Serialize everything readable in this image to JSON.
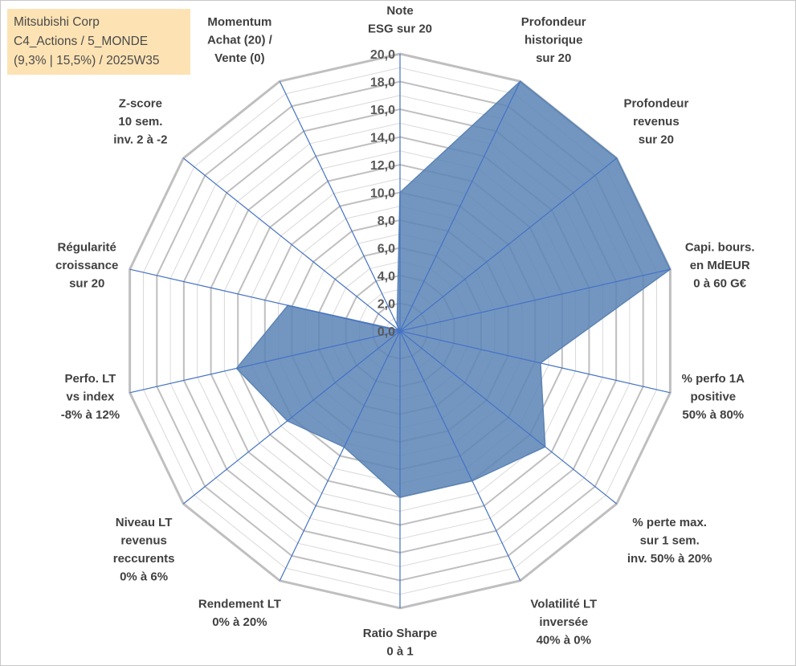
{
  "info_box": {
    "line1": "Mitsubishi Corp",
    "line2": "C4_Actions / 5_MONDE",
    "line3": "(9,3% | 15,5%) / 2025W35"
  },
  "colors": {
    "fill": "#5b84b6",
    "spoke": "#4472c4",
    "ring": "#bfbfbf",
    "ring_minor": "#d9d9d9"
  },
  "chart_data": {
    "type": "radar",
    "rlim": [
      0,
      20
    ],
    "ticks": [
      "0,0",
      "2,0",
      "4,0",
      "6,0",
      "8,0",
      "10,0",
      "12,0",
      "14,0",
      "16,0",
      "18,0",
      "20,0"
    ],
    "grid": true,
    "categories": [
      [
        "Note",
        "ESG sur 20"
      ],
      [
        "Profondeur",
        "historique",
        "sur 20"
      ],
      [
        "Profondeur",
        "revenus",
        "sur 20"
      ],
      [
        "Capi. bours.",
        "en MdEUR",
        "0 à 60 G€"
      ],
      [
        "% perfo 1A",
        "positive",
        "50% à 80%"
      ],
      [
        "% perte max.",
        "sur 1 sem.",
        "inv. 50% à 20%"
      ],
      [
        "Volatilité LT",
        "inversée",
        "40% à 0%"
      ],
      [
        "Ratio Sharpe",
        "0 à 1"
      ],
      [
        "Rendement LT",
        "0% à 20%"
      ],
      [
        "Niveau LT",
        "revenus",
        "reccurents",
        "0% à 6%"
      ],
      [
        "Perfo. LT",
        "vs index",
        "-8% à 12%"
      ],
      [
        "Régularité",
        "croissance",
        "sur 20"
      ],
      [
        "Z-score",
        "10 sem.",
        "inv. 2 à -2"
      ],
      [
        "Momentum",
        "Achat (20) /",
        "Vente (0)"
      ]
    ],
    "values": [
      10.0,
      20.0,
      20.0,
      20.0,
      10.4,
      13.4,
      12.0,
      12.0,
      9.3,
      10.4,
      12.1,
      8.3,
      0.1,
      0.5
    ]
  }
}
